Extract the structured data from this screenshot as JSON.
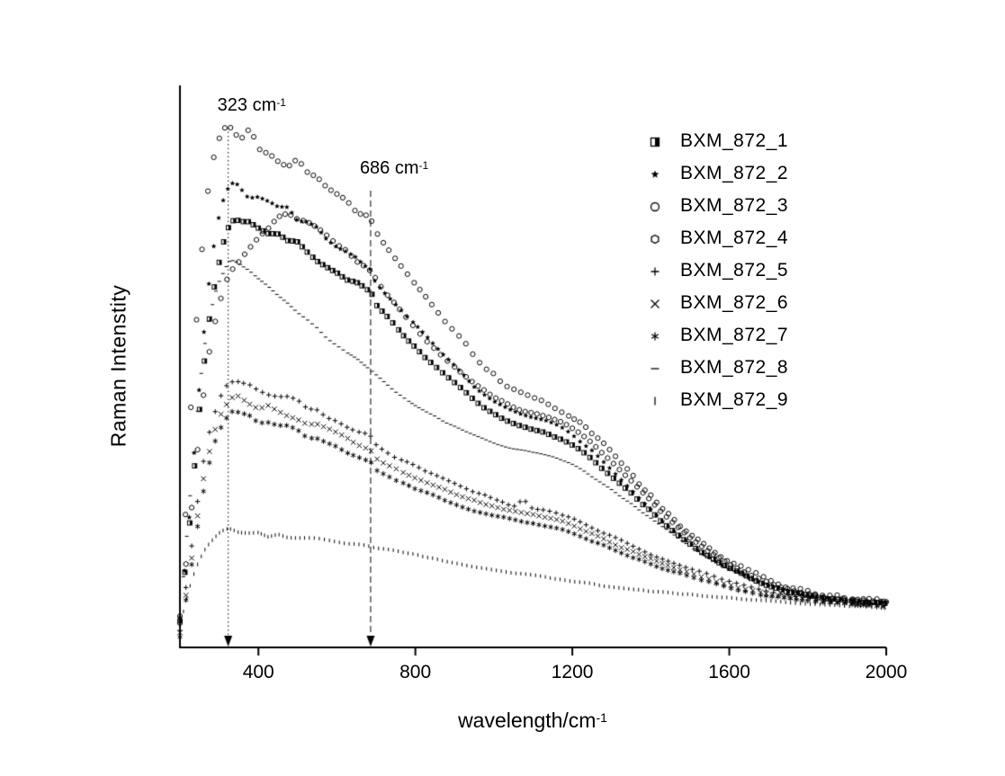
{
  "chart_data": {
    "type": "scatter",
    "title": "",
    "xlabel": "wavelength/cm",
    "xlabel_sup": "-1",
    "ylabel": "Raman Intenstity",
    "xlim": [
      200,
      2000
    ],
    "ylim": [
      0,
      1
    ],
    "xticks": [
      400,
      800,
      1200,
      1600,
      2000
    ],
    "yticks": "none (arbitrary intensity units)",
    "grid": false,
    "legend_position": "top-right-inside",
    "annotations": [
      {
        "label": "323 cm",
        "sup": "-1",
        "x": 323
      },
      {
        "label": "686 cm",
        "sup": "-1",
        "x": 686
      }
    ],
    "series": [
      {
        "name": "BXM_872_1",
        "marker": "square-right-half",
        "noise": 0.003,
        "points": [
          [
            200,
            0.05
          ],
          [
            225,
            0.22
          ],
          [
            250,
            0.42
          ],
          [
            275,
            0.58
          ],
          [
            300,
            0.69
          ],
          [
            320,
            0.745
          ],
          [
            340,
            0.765
          ],
          [
            370,
            0.755
          ],
          [
            410,
            0.745
          ],
          [
            450,
            0.735
          ],
          [
            490,
            0.72
          ],
          [
            530,
            0.7
          ],
          [
            580,
            0.675
          ],
          [
            630,
            0.655
          ],
          [
            686,
            0.63
          ],
          [
            700,
            0.61
          ],
          [
            750,
            0.57
          ],
          [
            820,
            0.52
          ],
          [
            900,
            0.47
          ],
          [
            980,
            0.425
          ],
          [
            1060,
            0.395
          ],
          [
            1140,
            0.38
          ],
          [
            1220,
            0.35
          ],
          [
            1300,
            0.305
          ],
          [
            1380,
            0.255
          ],
          [
            1460,
            0.205
          ],
          [
            1540,
            0.165
          ],
          [
            1620,
            0.135
          ],
          [
            1720,
            0.105
          ],
          [
            1820,
            0.09
          ],
          [
            1900,
            0.083
          ],
          [
            2000,
            0.078
          ]
        ]
      },
      {
        "name": "BXM_872_2",
        "marker": "star",
        "noise": 0.004,
        "points": [
          [
            200,
            0.05
          ],
          [
            220,
            0.2
          ],
          [
            240,
            0.38
          ],
          [
            260,
            0.55
          ],
          [
            280,
            0.68
          ],
          [
            300,
            0.77
          ],
          [
            320,
            0.815
          ],
          [
            335,
            0.825
          ],
          [
            360,
            0.81
          ],
          [
            400,
            0.8
          ],
          [
            440,
            0.79
          ],
          [
            480,
            0.775
          ],
          [
            520,
            0.755
          ],
          [
            560,
            0.735
          ],
          [
            600,
            0.715
          ],
          [
            650,
            0.69
          ],
          [
            686,
            0.675
          ],
          [
            700,
            0.65
          ],
          [
            750,
            0.61
          ],
          [
            810,
            0.565
          ],
          [
            880,
            0.515
          ],
          [
            950,
            0.465
          ],
          [
            1020,
            0.43
          ],
          [
            1090,
            0.41
          ],
          [
            1160,
            0.395
          ],
          [
            1240,
            0.355
          ],
          [
            1320,
            0.3
          ],
          [
            1400,
            0.245
          ],
          [
            1480,
            0.195
          ],
          [
            1560,
            0.155
          ],
          [
            1650,
            0.125
          ],
          [
            1750,
            0.1
          ],
          [
            1850,
            0.088
          ],
          [
            2000,
            0.08
          ]
        ]
      },
      {
        "name": "BXM_872_3",
        "marker": "circle-open",
        "noise": 0.007,
        "points": [
          [
            200,
            0.06
          ],
          [
            215,
            0.25
          ],
          [
            230,
            0.45
          ],
          [
            250,
            0.65
          ],
          [
            270,
            0.8
          ],
          [
            290,
            0.88
          ],
          [
            310,
            0.92
          ],
          [
            323,
            0.935
          ],
          [
            340,
            0.92
          ],
          [
            360,
            0.905
          ],
          [
            385,
            0.91
          ],
          [
            410,
            0.895
          ],
          [
            440,
            0.885
          ],
          [
            470,
            0.87
          ],
          [
            500,
            0.855
          ],
          [
            540,
            0.83
          ],
          [
            580,
            0.81
          ],
          [
            620,
            0.79
          ],
          [
            660,
            0.77
          ],
          [
            686,
            0.76
          ],
          [
            705,
            0.735
          ],
          [
            740,
            0.7
          ],
          [
            790,
            0.655
          ],
          [
            850,
            0.6
          ],
          [
            920,
            0.545
          ],
          [
            990,
            0.49
          ],
          [
            1060,
            0.455
          ],
          [
            1130,
            0.435
          ],
          [
            1200,
            0.41
          ],
          [
            1280,
            0.36
          ],
          [
            1360,
            0.3
          ],
          [
            1440,
            0.24
          ],
          [
            1520,
            0.19
          ],
          [
            1600,
            0.155
          ],
          [
            1700,
            0.12
          ],
          [
            1800,
            0.1
          ],
          [
            1900,
            0.088
          ],
          [
            2000,
            0.082
          ]
        ]
      },
      {
        "name": "BXM_872_4",
        "marker": "hexagon-open",
        "noise": 0.003,
        "points": [
          [
            200,
            0.04
          ],
          [
            230,
            0.25
          ],
          [
            260,
            0.45
          ],
          [
            290,
            0.58
          ],
          [
            320,
            0.655
          ],
          [
            360,
            0.7
          ],
          [
            400,
            0.735
          ],
          [
            440,
            0.76
          ],
          [
            470,
            0.77
          ],
          [
            500,
            0.765
          ],
          [
            540,
            0.75
          ],
          [
            590,
            0.725
          ],
          [
            640,
            0.695
          ],
          [
            686,
            0.67
          ],
          [
            710,
            0.645
          ],
          [
            760,
            0.6
          ],
          [
            830,
            0.545
          ],
          [
            900,
            0.5
          ],
          [
            980,
            0.455
          ],
          [
            1060,
            0.425
          ],
          [
            1140,
            0.41
          ],
          [
            1220,
            0.38
          ],
          [
            1300,
            0.33
          ],
          [
            1380,
            0.275
          ],
          [
            1460,
            0.22
          ],
          [
            1540,
            0.175
          ],
          [
            1620,
            0.14
          ],
          [
            1720,
            0.11
          ],
          [
            1820,
            0.092
          ],
          [
            2000,
            0.08
          ]
        ]
      },
      {
        "name": "BXM_872_5",
        "marker": "plus",
        "noise": 0.0025,
        "points": [
          [
            200,
            0.03
          ],
          [
            230,
            0.18
          ],
          [
            260,
            0.33
          ],
          [
            290,
            0.42
          ],
          [
            315,
            0.465
          ],
          [
            335,
            0.475
          ],
          [
            370,
            0.465
          ],
          [
            420,
            0.455
          ],
          [
            470,
            0.445
          ],
          [
            520,
            0.43
          ],
          [
            580,
            0.41
          ],
          [
            640,
            0.39
          ],
          [
            686,
            0.375
          ],
          [
            700,
            0.36
          ],
          [
            760,
            0.335
          ],
          [
            840,
            0.31
          ],
          [
            920,
            0.285
          ],
          [
            1000,
            0.265
          ],
          [
            1050,
            0.252
          ],
          [
            1075,
            0.262
          ],
          [
            1100,
            0.248
          ],
          [
            1180,
            0.235
          ],
          [
            1260,
            0.21
          ],
          [
            1340,
            0.185
          ],
          [
            1420,
            0.16
          ],
          [
            1500,
            0.14
          ],
          [
            1600,
            0.118
          ],
          [
            1700,
            0.1
          ],
          [
            1800,
            0.088
          ],
          [
            1900,
            0.08
          ],
          [
            2000,
            0.075
          ]
        ]
      },
      {
        "name": "BXM_872_6",
        "marker": "x",
        "noise": 0.0025,
        "points": [
          [
            200,
            0.025
          ],
          [
            230,
            0.16
          ],
          [
            260,
            0.3
          ],
          [
            290,
            0.39
          ],
          [
            315,
            0.43
          ],
          [
            335,
            0.445
          ],
          [
            375,
            0.435
          ],
          [
            425,
            0.425
          ],
          [
            475,
            0.415
          ],
          [
            525,
            0.4
          ],
          [
            585,
            0.385
          ],
          [
            645,
            0.365
          ],
          [
            686,
            0.35
          ],
          [
            700,
            0.335
          ],
          [
            760,
            0.315
          ],
          [
            840,
            0.29
          ],
          [
            920,
            0.268
          ],
          [
            1000,
            0.25
          ],
          [
            1080,
            0.238
          ],
          [
            1160,
            0.228
          ],
          [
            1240,
            0.205
          ],
          [
            1320,
            0.18
          ],
          [
            1400,
            0.157
          ],
          [
            1480,
            0.137
          ],
          [
            1580,
            0.115
          ],
          [
            1680,
            0.098
          ],
          [
            1800,
            0.086
          ],
          [
            1900,
            0.079
          ],
          [
            2000,
            0.074
          ]
        ]
      },
      {
        "name": "BXM_872_7",
        "marker": "asterisk",
        "noise": 0.0025,
        "points": [
          [
            200,
            0.02
          ],
          [
            230,
            0.15
          ],
          [
            260,
            0.28
          ],
          [
            290,
            0.37
          ],
          [
            315,
            0.405
          ],
          [
            335,
            0.42
          ],
          [
            375,
            0.41
          ],
          [
            425,
            0.4
          ],
          [
            475,
            0.39
          ],
          [
            525,
            0.377
          ],
          [
            585,
            0.36
          ],
          [
            645,
            0.343
          ],
          [
            686,
            0.33
          ],
          [
            700,
            0.315
          ],
          [
            760,
            0.295
          ],
          [
            840,
            0.272
          ],
          [
            920,
            0.25
          ],
          [
            1000,
            0.235
          ],
          [
            1080,
            0.222
          ],
          [
            1160,
            0.213
          ],
          [
            1240,
            0.192
          ],
          [
            1320,
            0.17
          ],
          [
            1400,
            0.148
          ],
          [
            1480,
            0.13
          ],
          [
            1580,
            0.11
          ],
          [
            1680,
            0.094
          ],
          [
            1800,
            0.083
          ],
          [
            1900,
            0.077
          ],
          [
            2000,
            0.072
          ]
        ]
      },
      {
        "name": "BXM_872_8",
        "marker": "hdash",
        "noise": 0.002,
        "points": [
          [
            200,
            0.05
          ],
          [
            230,
            0.3
          ],
          [
            260,
            0.52
          ],
          [
            290,
            0.63
          ],
          [
            315,
            0.675
          ],
          [
            330,
            0.69
          ],
          [
            360,
            0.675
          ],
          [
            400,
            0.655
          ],
          [
            450,
            0.625
          ],
          [
            500,
            0.595
          ],
          [
            560,
            0.56
          ],
          [
            620,
            0.53
          ],
          [
            686,
            0.495
          ],
          [
            740,
            0.46
          ],
          [
            800,
            0.43
          ],
          [
            880,
            0.4
          ],
          [
            960,
            0.375
          ],
          [
            1040,
            0.355
          ],
          [
            1120,
            0.345
          ],
          [
            1200,
            0.325
          ],
          [
            1280,
            0.29
          ],
          [
            1360,
            0.25
          ],
          [
            1440,
            0.21
          ],
          [
            1520,
            0.17
          ],
          [
            1600,
            0.14
          ],
          [
            1700,
            0.11
          ],
          [
            1800,
            0.092
          ],
          [
            1900,
            0.083
          ],
          [
            2000,
            0.078
          ]
        ]
      },
      {
        "name": "BXM_872_9",
        "marker": "vbar",
        "noise": 0.002,
        "points": [
          [
            200,
            0.04
          ],
          [
            230,
            0.12
          ],
          [
            260,
            0.17
          ],
          [
            290,
            0.195
          ],
          [
            320,
            0.208
          ],
          [
            360,
            0.205
          ],
          [
            420,
            0.2
          ],
          [
            500,
            0.195
          ],
          [
            600,
            0.188
          ],
          [
            700,
            0.178
          ],
          [
            800,
            0.165
          ],
          [
            900,
            0.15
          ],
          [
            1000,
            0.138
          ],
          [
            1100,
            0.128
          ],
          [
            1200,
            0.118
          ],
          [
            1300,
            0.108
          ],
          [
            1400,
            0.1
          ],
          [
            1500,
            0.094
          ],
          [
            1600,
            0.088
          ],
          [
            1700,
            0.083
          ],
          [
            1800,
            0.078
          ],
          [
            1900,
            0.074
          ],
          [
            2000,
            0.07
          ]
        ]
      }
    ],
    "colors": {
      "line": "#000000",
      "background": "#ffffff"
    }
  }
}
